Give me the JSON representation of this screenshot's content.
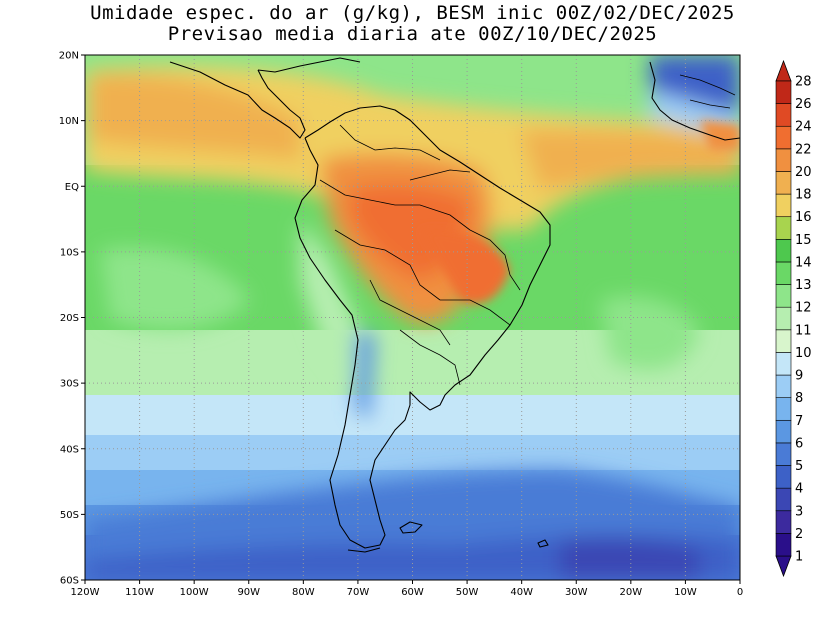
{
  "title": {
    "line1": "Umidade espec. do ar (g/kg), BESM inic 00Z/02/DEC/2025",
    "line2": "Previsao media diaria ate 00Z/10/DEC/2025"
  },
  "map": {
    "lon_range": [
      -120,
      0
    ],
    "lat_range": [
      -60,
      20
    ],
    "lon_ticks": [
      "120W",
      "110W",
      "100W",
      "90W",
      "80W",
      "70W",
      "60W",
      "50W",
      "40W",
      "30W",
      "20W",
      "10W",
      "0"
    ],
    "lat_ticks": [
      "20N",
      "10N",
      "EQ",
      "10S",
      "20S",
      "30S",
      "40S",
      "50S",
      "60S"
    ],
    "grid": "dotted",
    "features": "South America and West Africa coastlines with country borders"
  },
  "colorbar": {
    "placement": "right",
    "labels": [
      "1",
      "2",
      "3",
      "4",
      "5",
      "6",
      "7",
      "8",
      "9",
      "10",
      "11",
      "12",
      "13",
      "14",
      "15",
      "16",
      "18",
      "20",
      "22",
      "24",
      "26",
      "28"
    ],
    "colors": [
      "#2a0f8a",
      "#3c2a9e",
      "#3b47b4",
      "#3d61c7",
      "#4a7bd6",
      "#5b97e2",
      "#78b4ee",
      "#9ccdf5",
      "#c4e6f8",
      "#d8f5cc",
      "#b6eeb0",
      "#8ee58a",
      "#6ad866",
      "#4ec84e",
      "#a8d44e",
      "#f0d060",
      "#f0b050",
      "#f09040",
      "#f06e30",
      "#e04a24",
      "#c02818"
    ]
  }
}
